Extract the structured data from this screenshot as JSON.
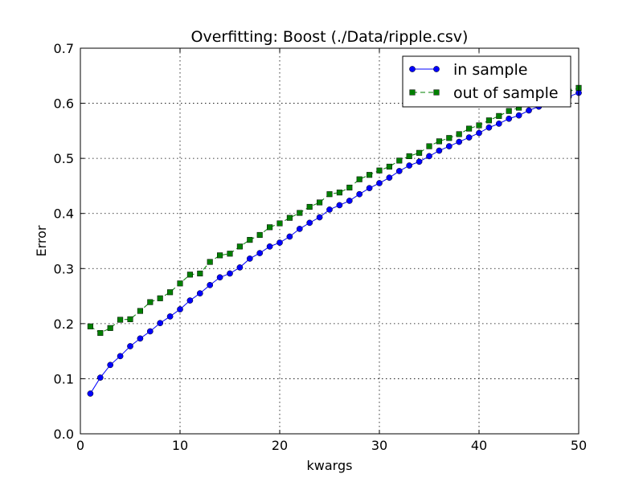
{
  "chart_data": {
    "type": "line",
    "title": "Overfitting: Boost (./Data/ripple.csv)",
    "xlabel": "kwargs",
    "ylabel": "Error",
    "xlim": [
      0,
      50
    ],
    "ylim": [
      0,
      0.7
    ],
    "xticks": [
      0,
      10,
      20,
      30,
      40,
      50
    ],
    "yticks": [
      0.0,
      0.1,
      0.2,
      0.3,
      0.4,
      0.5,
      0.6,
      0.7
    ],
    "xtick_labels": [
      "0",
      "10",
      "20",
      "30",
      "40",
      "50"
    ],
    "ytick_labels": [
      "0.0",
      "0.1",
      "0.2",
      "0.3",
      "0.4",
      "0.5",
      "0.6",
      "0.7"
    ],
    "grid": true,
    "legend_position": "top-right",
    "x": [
      1,
      2,
      3,
      4,
      5,
      6,
      7,
      8,
      9,
      10,
      11,
      12,
      13,
      14,
      15,
      16,
      17,
      18,
      19,
      20,
      21,
      22,
      23,
      24,
      25,
      26,
      27,
      28,
      29,
      30,
      31,
      32,
      33,
      34,
      35,
      36,
      37,
      38,
      39,
      40,
      41,
      42,
      43,
      44,
      45,
      46,
      47,
      48,
      49,
      50
    ],
    "series": [
      {
        "name": "in sample",
        "color": "#0000ff",
        "marker": "circle",
        "line_style": "solid",
        "values": [
          0.073,
          0.102,
          0.125,
          0.141,
          0.159,
          0.173,
          0.186,
          0.201,
          0.213,
          0.226,
          0.242,
          0.255,
          0.27,
          0.284,
          0.291,
          0.302,
          0.318,
          0.328,
          0.34,
          0.347,
          0.358,
          0.372,
          0.383,
          0.393,
          0.407,
          0.415,
          0.423,
          0.435,
          0.446,
          0.455,
          0.465,
          0.477,
          0.487,
          0.494,
          0.504,
          0.514,
          0.522,
          0.53,
          0.538,
          0.546,
          0.556,
          0.563,
          0.572,
          0.578,
          0.587,
          0.594,
          0.6,
          0.606,
          0.612,
          0.619
        ]
      },
      {
        "name": "out of sample",
        "color": "#008000",
        "marker": "square",
        "line_style": "dashed",
        "values": [
          0.195,
          0.183,
          0.192,
          0.207,
          0.208,
          0.223,
          0.239,
          0.246,
          0.257,
          0.273,
          0.289,
          0.291,
          0.312,
          0.324,
          0.327,
          0.34,
          0.352,
          0.361,
          0.375,
          0.382,
          0.392,
          0.401,
          0.412,
          0.42,
          0.435,
          0.438,
          0.447,
          0.462,
          0.47,
          0.478,
          0.485,
          0.496,
          0.504,
          0.51,
          0.522,
          0.531,
          0.537,
          0.544,
          0.554,
          0.56,
          0.569,
          0.577,
          0.586,
          0.592,
          0.598,
          0.604,
          0.609,
          0.615,
          0.621,
          0.628
        ]
      }
    ]
  },
  "colors": {
    "background": "#ffffff",
    "axes": "#000000"
  }
}
